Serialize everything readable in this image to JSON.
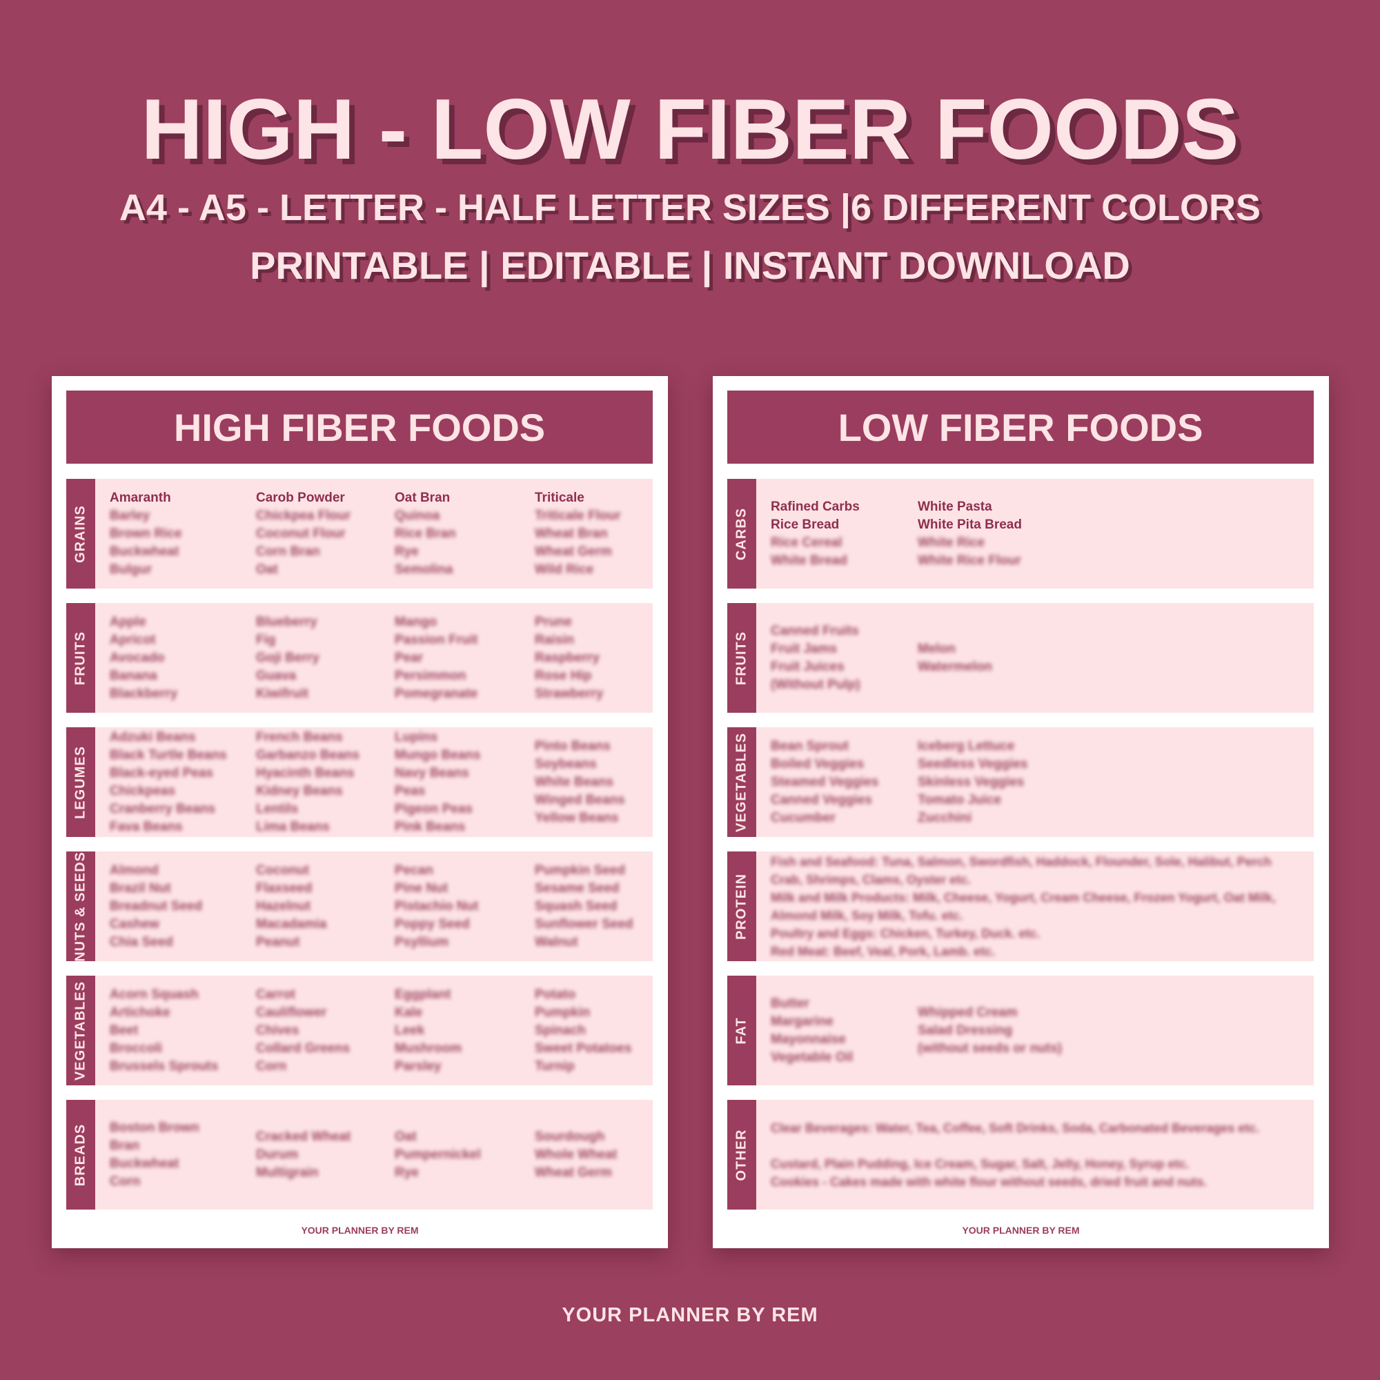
{
  "title": "HIGH - LOW FIBER FOODS",
  "subtitle1": "A4 - A5 - LETTER - HALF LETTER SIZES |6 DIFFERENT COLORS",
  "subtitle2": "PRINTABLE | EDITABLE | INSTANT DOWNLOAD",
  "brand": "YOUR PLANNER BY REM",
  "colors": {
    "background": "#9b405f",
    "accent": "#9b3d5e",
    "section_bg": "#fde3e5",
    "text_light": "#fde4e6"
  },
  "cards": [
    {
      "header": "HIGH FIBER FOODS",
      "footer": "YOUR PLANNER BY REM",
      "sections": [
        {
          "label": "GRAINS",
          "columns": [
            [
              "Amaranth",
              "Barley",
              "Brown Rice",
              "Buckwheat",
              "Bulgur"
            ],
            [
              "Carob Powder",
              "Chickpea Flour",
              "Coconut Flour",
              "Corn Bran",
              "Oat"
            ],
            [
              "Oat Bran",
              "Quinoa",
              "Rice Bran",
              "Rye",
              "Semolina"
            ],
            [
              "Triticale",
              "Triticale Flour",
              "Wheat Bran",
              "Wheat Germ",
              "Wild Rice"
            ]
          ]
        },
        {
          "label": "FRUITS",
          "columns": [
            [
              "Apple",
              "Apricot",
              "Avocado",
              "Banana",
              "Blackberry"
            ],
            [
              "Blueberry",
              "Fig",
              "Goji Berry",
              "Guava",
              "Kiwifruit"
            ],
            [
              "Mango",
              "Passion Fruit",
              "Pear",
              "Persimmon",
              "Pomegranate"
            ],
            [
              "Prune",
              "Raisin",
              "Raspberry",
              "Rose Hip",
              "Strawberry"
            ]
          ]
        },
        {
          "label": "LEGUMES",
          "columns": [
            [
              "Adzuki Beans",
              "Black Turtle Beans",
              "Black-eyed Peas",
              "Chickpeas",
              "Cranberry Beans",
              "Fava Beans"
            ],
            [
              "French Beans",
              "Garbanzo Beans",
              "Hyacinth Beans",
              "Kidney Beans",
              "Lentils",
              "Lima Beans"
            ],
            [
              "Lupins",
              "Mungo Beans",
              "Navy Beans",
              "Peas",
              "Pigeon Peas",
              "Pink Beans"
            ],
            [
              "Pinto Beans",
              "Soybeans",
              "White Beans",
              "Winged Beans",
              "Yellow Beans"
            ]
          ]
        },
        {
          "label": "NUTS & SEEDS",
          "columns": [
            [
              "Almond",
              "Brazil Nut",
              "Breadnut Seed",
              "Cashew",
              "Chia Seed"
            ],
            [
              "Coconut",
              "Flaxseed",
              "Hazelnut",
              "Macadamia",
              "Peanut"
            ],
            [
              "Pecan",
              "Pine Nut",
              "Pistachio Nut",
              "Poppy Seed",
              "Psyllium"
            ],
            [
              "Pumpkin Seed",
              "Sesame Seed",
              "Squash Seed",
              "Sunflower Seed",
              "Walnut"
            ]
          ]
        },
        {
          "label": "VEGETABLES",
          "columns": [
            [
              "Acorn Squash",
              "Artichoke",
              "Beet",
              "Broccoli",
              "Brussels Sprouts"
            ],
            [
              "Carrot",
              "Cauliflower",
              "Chives",
              "Collard Greens",
              "Corn"
            ],
            [
              "Eggplant",
              "Kale",
              "Leek",
              "Mushroom",
              "Parsley"
            ],
            [
              "Potato",
              "Pumpkin",
              "Spinach",
              "Sweet Potatoes",
              "Turnip"
            ]
          ]
        },
        {
          "label": "BREADS",
          "columns": [
            [
              "Boston Brown",
              "Bran",
              "Buckwheat",
              "Corn"
            ],
            [
              "Cracked Wheat",
              "Durum",
              "Multigrain"
            ],
            [
              "Oat",
              "Pumpernickel",
              "Rye"
            ],
            [
              "Sourdough",
              "Whole Wheat",
              "Wheat Germ"
            ]
          ]
        }
      ]
    },
    {
      "header": "LOW FIBER FOODS",
      "footer": "YOUR PLANNER BY REM",
      "sections": [
        {
          "label": "CARBS",
          "columns": [
            [
              "Rafined Carbs",
              "Rice Bread",
              "Rice Cereal",
              "White Bread"
            ],
            [
              "White Pasta",
              "White Pita Bread",
              "White Rice",
              "White Rice Flour"
            ]
          ]
        },
        {
          "label": "FRUITS",
          "columns": [
            [
              "Canned Fruits",
              "Fruit Jams",
              "Fruit Juices",
              "(Without Pulp)"
            ],
            [
              "Melon",
              "Watermelon"
            ]
          ]
        },
        {
          "label": "VEGETABLES",
          "columns": [
            [
              "Bean Sprout",
              "Boiled Veggies",
              "Steamed Veggies",
              "Canned Veggies",
              "Cucumber"
            ],
            [
              "Iceberg Lettuce",
              "Seedless Veggies",
              "Skinless Veggies",
              "Tomato Juice",
              "Zucchini"
            ]
          ]
        },
        {
          "label": "PROTEIN",
          "lines": [
            "Fish and Seafood: Tuna, Salmon, Swordfish, Haddock, Flounder, Sole, Halibut, Perch",
            "Crab, Shrimps, Clams, Oyster etc.",
            "Milk and Milk Products: Milk, Cheese, Yogurt, Cream Cheese, Frozen Yogurt, Oat Milk,",
            "Almond Milk, Soy Milk, Tofu. etc.",
            "Poultry and Eggs: Chicken, Turkey, Duck. etc.",
            "Red Meat: Beef, Veal, Pork, Lamb. etc."
          ]
        },
        {
          "label": "FAT",
          "columns": [
            [
              "Butter",
              "Margarine",
              "Mayonnaise",
              "Vegetable Oil"
            ],
            [
              "Whipped Cream",
              "Salad Dressing",
              "(without seeds or nuts)"
            ]
          ]
        },
        {
          "label": "OTHER",
          "lines": [
            "Clear Beverages: Water, Tea, Coffee, Soft Drinks, Soda, Carbonated Beverages etc.",
            "",
            "Custard, Plain Pudding, Ice Cream, Sugar, Salt, Jelly, Honey, Syrup etc.",
            "Cookies - Cakes made with white flour without seeds, dried fruit and nuts."
          ]
        }
      ]
    }
  ]
}
